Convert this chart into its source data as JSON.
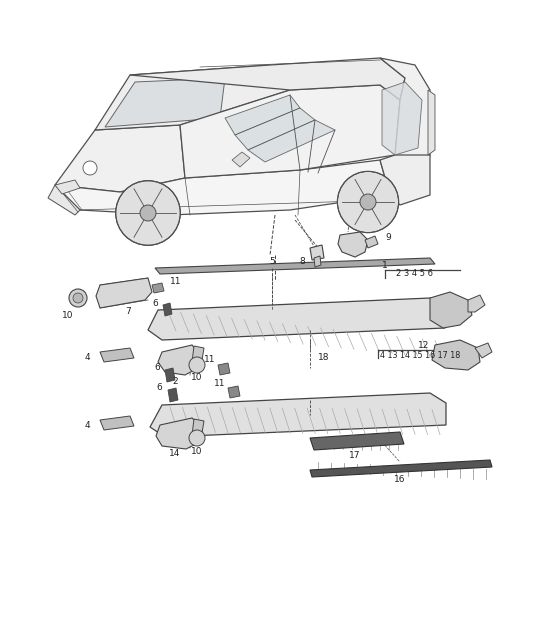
{
  "bg_color": "#ffffff",
  "fig_width": 5.45,
  "fig_height": 6.28,
  "dpi": 100,
  "line_color": "#444444",
  "text_color": "#222222",
  "gray_fill": "#e8e8e8",
  "dark_fill": "#555555",
  "light_fill": "#f0f0f0"
}
